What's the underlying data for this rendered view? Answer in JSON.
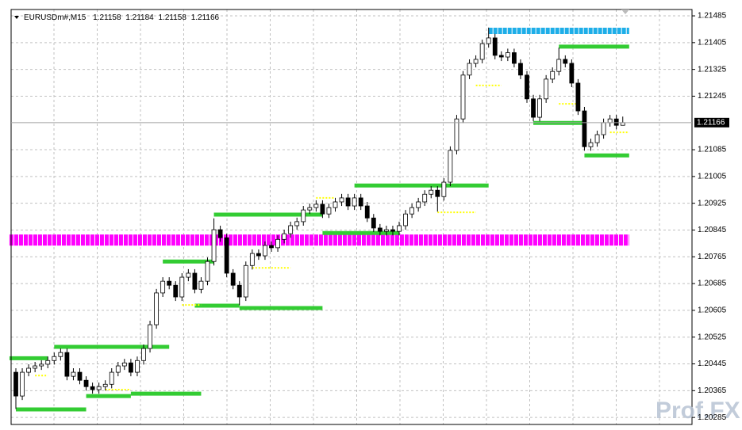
{
  "chart_data": {
    "type": "candlestick",
    "title": "EURUSDm#,M15",
    "watermark": "Prof.FX",
    "ylim": [
      1.20264,
      1.21504
    ],
    "yticks": [
      1.21485,
      1.21405,
      1.21325,
      1.21245,
      1.21085,
      1.21005,
      1.20925,
      1.20845,
      1.20765,
      1.20685,
      1.20605,
      1.20525,
      1.20445,
      1.20365,
      1.20285
    ],
    "grid": true,
    "up_color": "#ffffff",
    "down_color": "#000000",
    "open": [
      1.2042,
      1.20349,
      1.2042,
      1.20432,
      1.20439,
      1.20444,
      1.20455,
      1.20467,
      1.20479,
      1.20408,
      1.2042,
      1.20396,
      1.20377,
      1.20368,
      1.20377,
      1.20384,
      1.2042,
      1.20439,
      1.20448,
      1.2042,
      1.20455,
      1.20491,
      1.20562,
      1.20657,
      1.20692,
      1.2068,
      1.20645,
      1.20704,
      1.20716,
      1.20668,
      1.20692,
      1.20751,
      1.20846,
      1.20822,
      1.20716,
      1.2068,
      1.20645,
      1.20739,
      1.20775,
      1.20768,
      1.20799,
      1.20792,
      1.20817,
      1.20834,
      1.20858,
      1.2087,
      1.20905,
      1.20912,
      1.20922,
      1.20893,
      1.20912,
      1.20929,
      1.20941,
      1.20917,
      1.20941,
      1.20917,
      1.20881,
      1.20851,
      1.20841,
      1.20846,
      1.20841,
      1.20858,
      1.20893,
      1.20912,
      1.20929,
      1.20952,
      1.20964,
      1.20945,
      1.20988,
      1.21083,
      1.21177,
      1.21308,
      1.21343,
      1.21355,
      1.21402,
      1.21419,
      1.21367,
      1.21362,
      1.21375,
      1.21343,
      1.21308,
      1.21237,
      1.21182,
      1.21237,
      1.21296,
      1.21319,
      1.21355,
      1.21343,
      1.21284,
      1.21201,
      1.21094,
      1.21106,
      1.2113,
      1.21166,
      1.21177,
      1.21158
    ],
    "high": [
      1.20432,
      1.20432,
      1.20444,
      1.20451,
      1.20456,
      1.20467,
      1.20479,
      1.20491,
      1.20491,
      1.20432,
      1.20432,
      1.20408,
      1.20389,
      1.20389,
      1.20396,
      1.20432,
      1.20451,
      1.2046,
      1.2046,
      1.20467,
      1.20503,
      1.20574,
      1.20669,
      1.20704,
      1.20704,
      1.20692,
      1.20716,
      1.20728,
      1.20728,
      1.20704,
      1.20763,
      1.2088,
      1.20858,
      1.20834,
      1.20728,
      1.20692,
      1.20751,
      1.20787,
      1.20787,
      1.20811,
      1.20811,
      1.20829,
      1.20846,
      1.2087,
      1.20882,
      1.20917,
      1.20924,
      1.20934,
      1.20934,
      1.20924,
      1.20941,
      1.20953,
      1.20953,
      1.20953,
      1.20953,
      1.20929,
      1.20893,
      1.20863,
      1.20858,
      1.20858,
      1.2087,
      1.20905,
      1.20924,
      1.20941,
      1.20964,
      1.20976,
      1.20976,
      1.21,
      1.21095,
      1.21189,
      1.2132,
      1.21355,
      1.21367,
      1.21414,
      1.2145,
      1.21431,
      1.21379,
      1.21387,
      1.21387,
      1.21355,
      1.2132,
      1.21249,
      1.21249,
      1.21308,
      1.21331,
      1.2139,
      1.21367,
      1.21355,
      1.21296,
      1.21213,
      1.21118,
      1.21142,
      1.21178,
      1.21189,
      1.21189,
      1.21184
    ],
    "low": [
      1.2031,
      1.20337,
      1.20408,
      1.2042,
      1.20427,
      1.20432,
      1.20443,
      1.20455,
      1.20396,
      1.20396,
      1.20384,
      1.20365,
      1.20356,
      1.20356,
      1.20365,
      1.20372,
      1.20408,
      1.20427,
      1.20408,
      1.20408,
      1.20443,
      1.20479,
      1.2055,
      1.20645,
      1.20668,
      1.20633,
      1.20633,
      1.20692,
      1.20656,
      1.20656,
      1.2068,
      1.20739,
      1.2081,
      1.20704,
      1.20668,
      1.2062,
      1.20633,
      1.20727,
      1.20756,
      1.20756,
      1.2078,
      1.2078,
      1.20805,
      1.20822,
      1.20846,
      1.20858,
      1.20893,
      1.209,
      1.20881,
      1.20881,
      1.209,
      1.20917,
      1.20905,
      1.20905,
      1.20905,
      1.20869,
      1.20839,
      1.20829,
      1.20829,
      1.20829,
      1.20829,
      1.20846,
      1.20881,
      1.209,
      1.20917,
      1.2094,
      1.209,
      1.20933,
      1.20976,
      1.21071,
      1.21165,
      1.21296,
      1.21331,
      1.21343,
      1.2139,
      1.21355,
      1.2135,
      1.2135,
      1.21331,
      1.21296,
      1.21225,
      1.2117,
      1.2117,
      1.21225,
      1.21284,
      1.21307,
      1.21331,
      1.21272,
      1.21189,
      1.21082,
      1.21082,
      1.21094,
      1.21118,
      1.21154,
      1.21146,
      1.21158
    ],
    "close": [
      1.20349,
      1.2042,
      1.20432,
      1.20439,
      1.20444,
      1.20455,
      1.20467,
      1.20479,
      1.20408,
      1.2042,
      1.20396,
      1.20377,
      1.20368,
      1.20377,
      1.20384,
      1.2042,
      1.20439,
      1.20448,
      1.2042,
      1.20455,
      1.20491,
      1.20562,
      1.20657,
      1.20692,
      1.2068,
      1.20645,
      1.20704,
      1.20716,
      1.20668,
      1.20692,
      1.20751,
      1.20846,
      1.20822,
      1.20716,
      1.2068,
      1.20645,
      1.20739,
      1.20775,
      1.20768,
      1.20799,
      1.20792,
      1.20817,
      1.20834,
      1.20858,
      1.2087,
      1.20905,
      1.20912,
      1.20922,
      1.20893,
      1.20912,
      1.20929,
      1.20941,
      1.20917,
      1.20941,
      1.20917,
      1.20881,
      1.20851,
      1.20841,
      1.20846,
      1.20841,
      1.20858,
      1.20893,
      1.20912,
      1.20929,
      1.20952,
      1.20964,
      1.20945,
      1.20988,
      1.21083,
      1.21177,
      1.21308,
      1.21343,
      1.21355,
      1.21402,
      1.21419,
      1.21367,
      1.21362,
      1.21375,
      1.21343,
      1.21308,
      1.21237,
      1.21182,
      1.21237,
      1.21296,
      1.21319,
      1.21355,
      1.21343,
      1.21284,
      1.21201,
      1.21094,
      1.21106,
      1.2113,
      1.21166,
      1.21177,
      1.21158,
      1.21166
    ],
    "levels": [
      {
        "price": 1.20815,
        "from": -1,
        "to": 96,
        "color": "#ff00ff"
      },
      {
        "price": 1.2144,
        "from": 74,
        "to": 96,
        "color": "#1eaee8"
      },
      {
        "price": 1.20462,
        "from": -1,
        "to": 5,
        "color": "#33cc33"
      },
      {
        "price": 1.20496,
        "from": 6,
        "to": 24,
        "color": "#33cc33"
      },
      {
        "price": 1.20309,
        "from": 0,
        "to": 11,
        "color": "#33cc33"
      },
      {
        "price": 1.20349,
        "from": 11,
        "to": 18,
        "color": "#33cc33"
      },
      {
        "price": 1.20356,
        "from": 18,
        "to": 29,
        "color": "#33cc33"
      },
      {
        "price": 1.20751,
        "from": 23,
        "to": 31,
        "color": "#33cc33"
      },
      {
        "price": 1.20619,
        "from": 28,
        "to": 35,
        "color": "#33cc33"
      },
      {
        "price": 1.20612,
        "from": 35,
        "to": 48,
        "color": "#33cc33"
      },
      {
        "price": 1.20891,
        "from": 31,
        "to": 48,
        "color": "#33cc33"
      },
      {
        "price": 1.20836,
        "from": 48,
        "to": 60,
        "color": "#33cc33"
      },
      {
        "price": 1.20978,
        "from": 53,
        "to": 74,
        "color": "#33cc33"
      },
      {
        "price": 1.21393,
        "from": 85,
        "to": 96,
        "color": "#33cc33"
      },
      {
        "price": 1.21165,
        "from": 81,
        "to": 89,
        "color": "#33cc33"
      },
      {
        "price": 1.21068,
        "from": 89,
        "to": 96,
        "color": "#33cc33"
      },
      {
        "price": 1.21277,
        "from": 72,
        "to": 76,
        "color": "#ffff00"
      },
      {
        "price": 1.21222,
        "from": 85,
        "to": 88,
        "color": "#ffff00"
      },
      {
        "price": 1.21137,
        "from": 93,
        "to": 96,
        "color": "#ffff00"
      },
      {
        "price": 1.20898,
        "from": 66,
        "to": 72,
        "color": "#ffff00"
      },
      {
        "price": 1.20732,
        "from": 37,
        "to": 43,
        "color": "#ffff00"
      },
      {
        "price": 1.20621,
        "from": 26,
        "to": 29,
        "color": "#ffff00"
      },
      {
        "price": 1.20368,
        "from": 14,
        "to": 18,
        "color": "#ffff00"
      },
      {
        "price": 1.2041,
        "from": 3,
        "to": 5,
        "color": "#ffff00"
      },
      {
        "price": 1.20941,
        "from": 47,
        "to": 50,
        "color": "#ffff00"
      }
    ]
  }
}
